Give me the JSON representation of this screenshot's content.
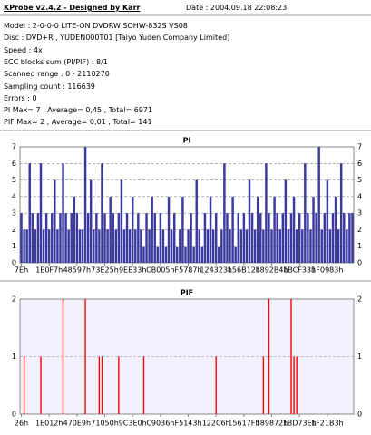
{
  "header": {
    "title": "KProbe v2.4.2 - Designed by Karr",
    "date": "Date : 2004.09.18 22:08:23",
    "lines": [
      "Model : 2-0-0-0 LITE-ON DVDRW SOHW-832S  VS08",
      "Disc : DVD+R , YUDEN000T01 [Taiyo Yuden Company Limited]",
      "Speed : 4x",
      "ECC blocks sum (PI/PIF) : 8/1",
      "Scanned range : 0 - 2110270",
      "Sampling count : 116639",
      "Errors : 0",
      "PI Max= 7 , Average= 0,45 , Total= 6971",
      "PIF Max= 2 , Average= 0,01 , Total= 141"
    ]
  },
  "chart_data": [
    {
      "type": "bar",
      "title": "PI",
      "color": "#3a3a9e",
      "ylim": [
        0,
        7
      ],
      "yticks": [
        0,
        1,
        2,
        3,
        4,
        5,
        6,
        7
      ],
      "grid": true,
      "categories": [
        "7Eh",
        null,
        null,
        null,
        null,
        null,
        null,
        null,
        null,
        null,
        "1E0F7h",
        null,
        null,
        null,
        null,
        null,
        null,
        null,
        null,
        null,
        "48597h",
        null,
        null,
        null,
        null,
        null,
        null,
        null,
        null,
        null,
        "73E25h",
        null,
        null,
        null,
        null,
        null,
        null,
        null,
        null,
        null,
        "9EE33h",
        null,
        null,
        null,
        null,
        null,
        null,
        null,
        null,
        null,
        "CB005h",
        null,
        null,
        null,
        null,
        null,
        null,
        null,
        null,
        null,
        "F5787h",
        null,
        null,
        null,
        null,
        null,
        null,
        null,
        null,
        null,
        "124323h",
        null,
        null,
        null,
        null,
        null,
        null,
        null,
        null,
        null,
        "156B12h",
        null,
        null,
        null,
        null,
        null,
        null,
        null,
        null,
        null,
        "1892B4h",
        null,
        null,
        null,
        null,
        null,
        null,
        null,
        null,
        null,
        "1BCF33h",
        null,
        null,
        null,
        null,
        null,
        null,
        null,
        null,
        null,
        "1F0983h",
        null,
        null,
        null,
        null,
        null,
        null,
        null,
        null,
        null
      ],
      "values": [
        3,
        2,
        2,
        6,
        3,
        2,
        3,
        6,
        2,
        3,
        2,
        3,
        5,
        2,
        3,
        6,
        3,
        2,
        3,
        4,
        3,
        2,
        2,
        7,
        3,
        5,
        2,
        3,
        2,
        6,
        3,
        2,
        4,
        3,
        2,
        3,
        5,
        2,
        3,
        2,
        4,
        2,
        3,
        2,
        1,
        3,
        2,
        4,
        3,
        1,
        3,
        2,
        1,
        4,
        2,
        3,
        1,
        2,
        4,
        1,
        2,
        3,
        1,
        5,
        2,
        1,
        3,
        2,
        4,
        2,
        3,
        1,
        2,
        6,
        3,
        2,
        4,
        1,
        3,
        2,
        3,
        2,
        5,
        3,
        2,
        4,
        3,
        2,
        6,
        3,
        2,
        4,
        3,
        2,
        3,
        5,
        2,
        3,
        4,
        2,
        3,
        2,
        6,
        3,
        2,
        4,
        3,
        7,
        2,
        3,
        5,
        2,
        3,
        4,
        2,
        6,
        3,
        2,
        3,
        3
      ]
    },
    {
      "type": "bar",
      "title": "PIF",
      "color": "#ff0000",
      "ylim": [
        0,
        2
      ],
      "yticks": [
        0,
        1,
        2
      ],
      "grid": true,
      "categories": [
        "26h",
        null,
        null,
        null,
        null,
        null,
        null,
        null,
        null,
        null,
        "1E012h",
        null,
        null,
        null,
        null,
        null,
        null,
        null,
        null,
        null,
        "470E9h",
        null,
        null,
        null,
        null,
        null,
        null,
        null,
        null,
        null,
        "71050h",
        null,
        null,
        null,
        null,
        null,
        null,
        null,
        null,
        null,
        "9C3E0h",
        null,
        null,
        null,
        null,
        null,
        null,
        null,
        null,
        null,
        "C9036h",
        null,
        null,
        null,
        null,
        null,
        null,
        null,
        null,
        null,
        "F5143h",
        null,
        null,
        null,
        null,
        null,
        null,
        null,
        null,
        null,
        "122C6h",
        null,
        null,
        null,
        null,
        null,
        null,
        null,
        null,
        null,
        "15617Fh",
        null,
        null,
        null,
        null,
        null,
        null,
        null,
        null,
        null,
        "189872h",
        null,
        null,
        null,
        null,
        null,
        null,
        null,
        null,
        null,
        "1BD73Eh",
        null,
        null,
        null,
        null,
        null,
        null,
        null,
        null,
        null,
        "1F21B3h",
        null,
        null,
        null,
        null,
        null,
        null,
        null,
        null,
        null
      ],
      "values": [
        0,
        1,
        0,
        0,
        0,
        0,
        0,
        1,
        0,
        0,
        0,
        0,
        0,
        0,
        0,
        2,
        0,
        0,
        0,
        0,
        0,
        0,
        0,
        2,
        0,
        0,
        0,
        0,
        1,
        1,
        0,
        0,
        0,
        0,
        0,
        1,
        0,
        0,
        0,
        0,
        0,
        0,
        0,
        0,
        1,
        0,
        0,
        0,
        0,
        0,
        0,
        0,
        0,
        0,
        0,
        0,
        0,
        0,
        0,
        0,
        0,
        0,
        0,
        0,
        0,
        0,
        0,
        0,
        0,
        0,
        1,
        0,
        0,
        0,
        0,
        0,
        0,
        0,
        0,
        0,
        0,
        0,
        0,
        0,
        0,
        0,
        0,
        1,
        0,
        2,
        0,
        0,
        0,
        0,
        0,
        0,
        0,
        2,
        1,
        1,
        0,
        0,
        0,
        0,
        0,
        0,
        0,
        0,
        0,
        0,
        0,
        0,
        0,
        0,
        0,
        0,
        0,
        0,
        0,
        0
      ]
    }
  ]
}
